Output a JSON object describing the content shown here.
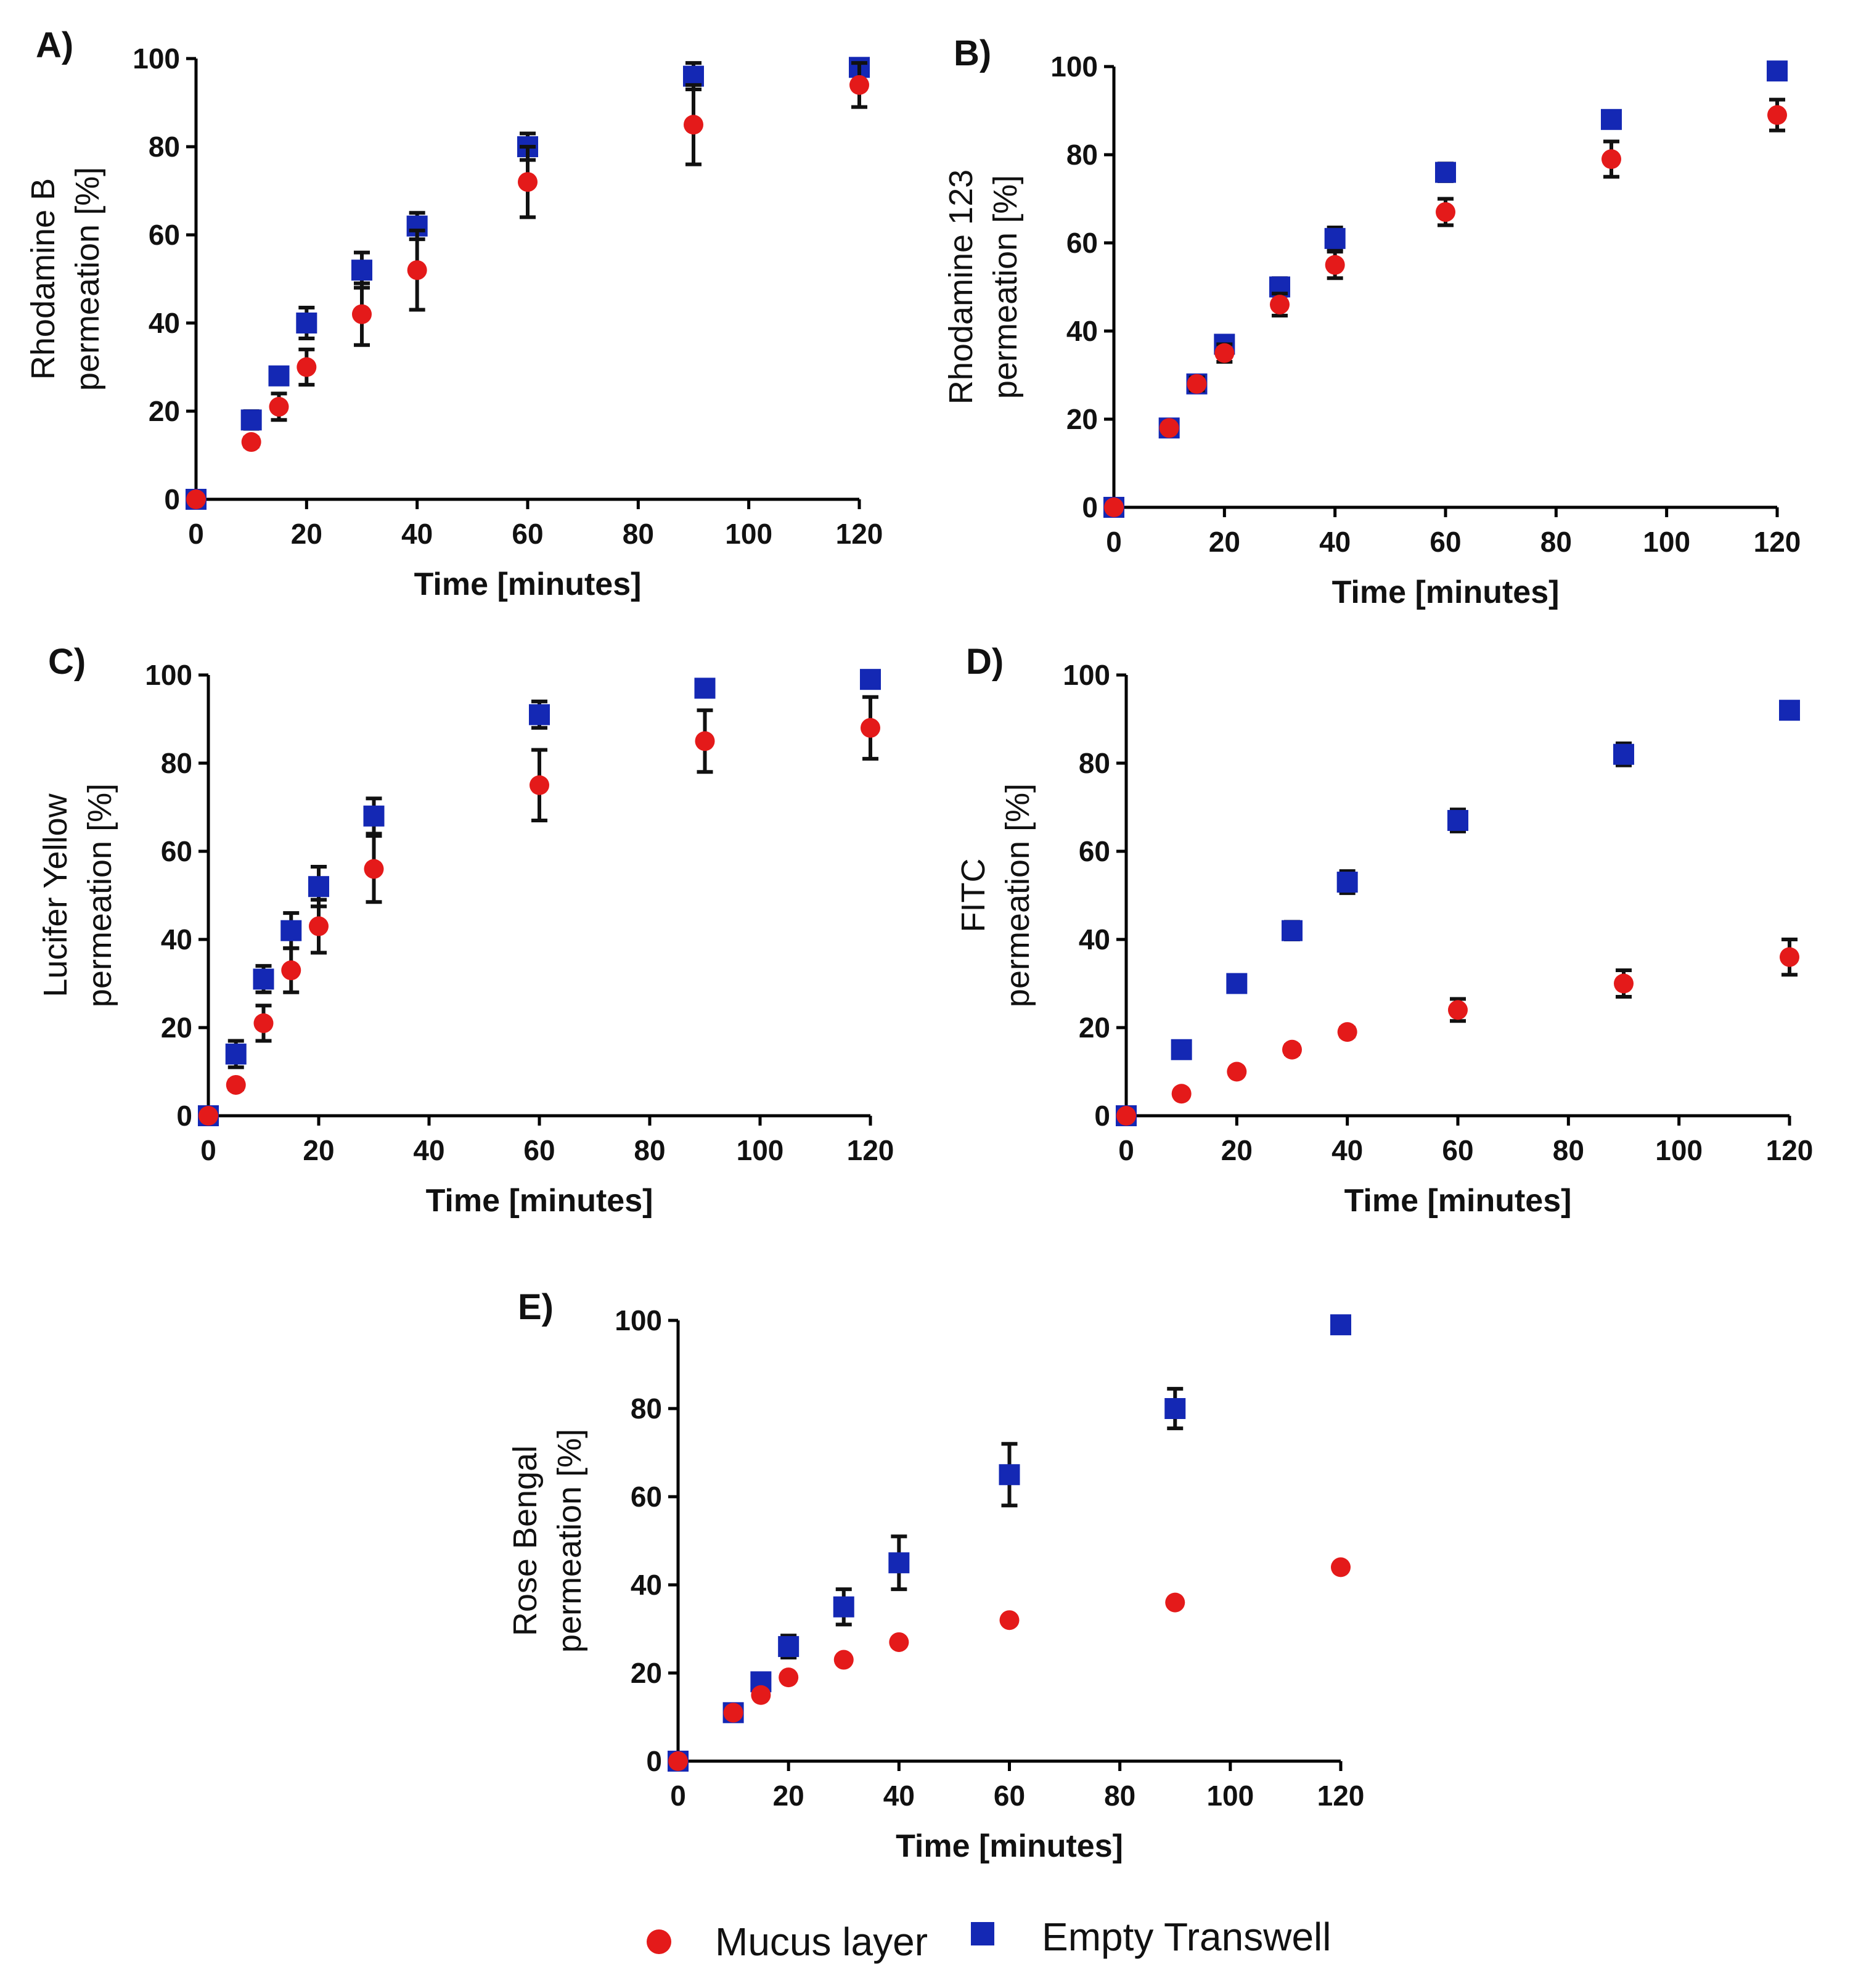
{
  "chart_data": [
    {
      "type": "scatter",
      "panel_label": "A)",
      "ylabel_lines": [
        "Rhodamine B",
        "permeation [%]"
      ],
      "xlabel": "Time [minutes]",
      "xlim": [
        0,
        120
      ],
      "ylim": [
        0,
        100
      ],
      "xticks": [
        0,
        20,
        40,
        60,
        80,
        100,
        120
      ],
      "yticks": [
        0,
        20,
        40,
        60,
        80,
        100
      ],
      "series": [
        {
          "name": "Empty Transwell",
          "x": [
            0,
            10,
            15,
            20,
            30,
            40,
            60,
            90,
            120
          ],
          "y": [
            0,
            18,
            28,
            40,
            52,
            62,
            80,
            96,
            98
          ],
          "err": [
            0,
            2,
            1.5,
            3.5,
            4,
            3,
            3,
            3,
            1
          ]
        },
        {
          "name": "Mucus layer",
          "x": [
            0,
            10,
            15,
            20,
            30,
            40,
            60,
            90,
            120
          ],
          "y": [
            0,
            13,
            21,
            30,
            42,
            52,
            72,
            85,
            94
          ],
          "err": [
            0,
            1,
            3,
            4,
            7,
            9,
            8,
            9,
            5
          ]
        }
      ]
    },
    {
      "type": "scatter",
      "panel_label": "B)",
      "ylabel_lines": [
        "Rhodamine 123",
        "permeation [%]"
      ],
      "xlabel": "Time [minutes]",
      "xlim": [
        0,
        120
      ],
      "ylim": [
        0,
        100
      ],
      "xticks": [
        0,
        20,
        40,
        60,
        80,
        100,
        120
      ],
      "yticks": [
        0,
        20,
        40,
        60,
        80,
        100
      ],
      "series": [
        {
          "name": "Empty Transwell",
          "x": [
            0,
            10,
            15,
            20,
            30,
            40,
            60,
            90,
            120
          ],
          "y": [
            0,
            18,
            28,
            37,
            50,
            61,
            76,
            88,
            99
          ],
          "err": [
            0,
            1,
            1,
            1.5,
            2,
            2.5,
            2,
            1,
            1
          ]
        },
        {
          "name": "Mucus layer",
          "x": [
            0,
            10,
            15,
            20,
            30,
            40,
            60,
            90,
            120
          ],
          "y": [
            0,
            18,
            28,
            35,
            46,
            55,
            67,
            79,
            89
          ],
          "err": [
            0,
            1,
            1.5,
            2,
            2.5,
            3,
            3,
            4,
            3.5
          ]
        }
      ]
    },
    {
      "type": "scatter",
      "panel_label": "C)",
      "ylabel_lines": [
        "Lucifer Yellow",
        "permeation [%]"
      ],
      "xlabel": "Time [minutes]",
      "xlim": [
        0,
        120
      ],
      "ylim": [
        0,
        100
      ],
      "xticks": [
        0,
        20,
        40,
        60,
        80,
        100,
        120
      ],
      "yticks": [
        0,
        20,
        40,
        60,
        80,
        100
      ],
      "series": [
        {
          "name": "Empty Transwell",
          "x": [
            0,
            5,
            10,
            15,
            20,
            30,
            60,
            90,
            120
          ],
          "y": [
            0,
            14,
            31,
            42,
            52,
            68,
            91,
            97,
            99
          ],
          "err": [
            0,
            3,
            3,
            4,
            4.5,
            4,
            3,
            1,
            1
          ]
        },
        {
          "name": "Mucus layer",
          "x": [
            0,
            5,
            10,
            15,
            20,
            30,
            60,
            90,
            120
          ],
          "y": [
            0,
            7,
            21,
            33,
            43,
            56,
            75,
            85,
            88
          ],
          "err": [
            0,
            1,
            4,
            5,
            6,
            7.5,
            8,
            7,
            7
          ]
        }
      ]
    },
    {
      "type": "scatter",
      "panel_label": "D)",
      "ylabel_lines": [
        "FITC",
        "permeation [%]"
      ],
      "xlabel": "Time [minutes]",
      "xlim": [
        0,
        120
      ],
      "ylim": [
        0,
        100
      ],
      "xticks": [
        0,
        20,
        40,
        60,
        80,
        100,
        120
      ],
      "yticks": [
        0,
        20,
        40,
        60,
        80,
        100
      ],
      "series": [
        {
          "name": "Empty Transwell",
          "x": [
            0,
            10,
            20,
            30,
            40,
            60,
            90,
            120
          ],
          "y": [
            0,
            15,
            30,
            42,
            53,
            67,
            82,
            92
          ],
          "err": [
            0,
            1,
            1,
            2,
            2.5,
            2.5,
            2.5,
            1
          ]
        },
        {
          "name": "Mucus layer",
          "x": [
            0,
            10,
            20,
            30,
            40,
            60,
            90,
            120
          ],
          "y": [
            0,
            5,
            10,
            15,
            19,
            24,
            30,
            36
          ],
          "err": [
            0,
            0.5,
            0.5,
            1,
            1,
            2.5,
            3,
            4
          ]
        }
      ]
    },
    {
      "type": "scatter",
      "panel_label": "E)",
      "ylabel_lines": [
        "Rose Bengal",
        "permeation [%]"
      ],
      "xlabel": "Time [minutes]",
      "xlim": [
        0,
        120
      ],
      "ylim": [
        0,
        100
      ],
      "xticks": [
        0,
        20,
        40,
        60,
        80,
        100,
        120
      ],
      "yticks": [
        0,
        20,
        40,
        60,
        80,
        100
      ],
      "series": [
        {
          "name": "Empty Transwell",
          "x": [
            0,
            10,
            15,
            20,
            30,
            40,
            60,
            90,
            120
          ],
          "y": [
            0,
            11,
            18,
            26,
            35,
            45,
            65,
            80,
            99
          ],
          "err": [
            0,
            1,
            1,
            2.5,
            4,
            6,
            7,
            4.5,
            1.5
          ]
        },
        {
          "name": "Mucus layer",
          "x": [
            0,
            10,
            15,
            20,
            30,
            40,
            60,
            90,
            120
          ],
          "y": [
            0,
            11,
            15,
            19,
            23,
            27,
            32,
            36,
            44
          ],
          "err": [
            0,
            0.5,
            0.5,
            0.5,
            0.5,
            0.5,
            0.5,
            0.5,
            0.5
          ]
        }
      ]
    }
  ],
  "legend": {
    "items": [
      {
        "name": "Mucus layer",
        "marker": "circle",
        "color": "#e41a1a"
      },
      {
        "name": "Empty Transwell",
        "marker": "square",
        "color": "#1428b4"
      }
    ]
  },
  "colors": {
    "Mucus layer": "#e41a1a",
    "Empty Transwell": "#1428b4"
  }
}
